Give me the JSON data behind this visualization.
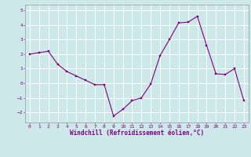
{
  "x": [
    0,
    1,
    2,
    3,
    4,
    5,
    6,
    7,
    8,
    9,
    10,
    11,
    12,
    13,
    14,
    15,
    16,
    17,
    18,
    19,
    20,
    21,
    22,
    23
  ],
  "y": [
    2.0,
    2.1,
    2.2,
    1.3,
    0.8,
    0.5,
    0.2,
    -0.1,
    -0.1,
    -2.25,
    -1.8,
    -1.2,
    -1.0,
    -0.05,
    1.9,
    3.0,
    4.15,
    4.2,
    4.6,
    2.6,
    0.65,
    0.6,
    1.0,
    -1.2
  ],
  "xlabel": "Windchill (Refroidissement éolien,°C)",
  "xlim": [
    -0.5,
    23.5
  ],
  "ylim": [
    -2.7,
    5.4
  ],
  "yticks": [
    -2,
    -1,
    0,
    1,
    2,
    3,
    4,
    5
  ],
  "xticks": [
    0,
    1,
    2,
    3,
    4,
    5,
    6,
    7,
    8,
    9,
    10,
    11,
    12,
    13,
    14,
    15,
    16,
    17,
    18,
    19,
    20,
    21,
    22,
    23
  ],
  "line_color": "#800080",
  "marker_color": "#800080",
  "bg_color": "#cce8e8",
  "grid_color": "#ffffff",
  "tick_label_color": "#800080",
  "axis_label_color": "#800080",
  "font_family": "monospace",
  "tick_fontsize": 4.5,
  "xlabel_fontsize": 5.5
}
